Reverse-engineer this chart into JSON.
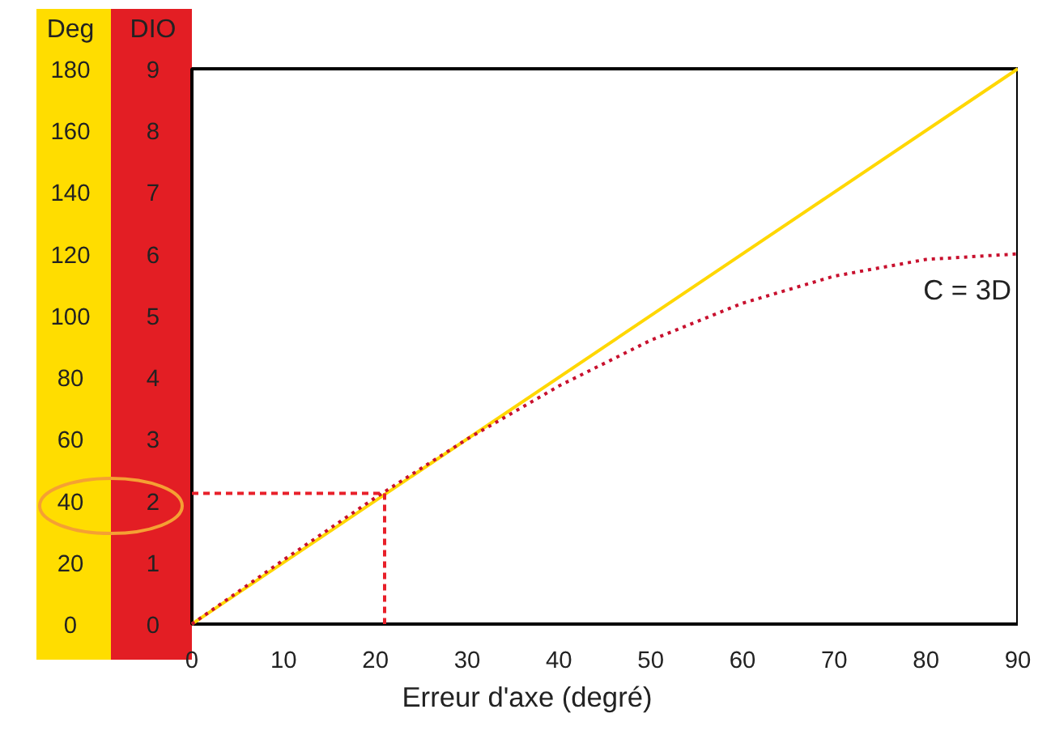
{
  "chart_data": {
    "type": "line",
    "xlabel": "Erreur d'axe (degré)",
    "ylabel": "DIO",
    "y2label": "Deg",
    "x": [
      0,
      10,
      20,
      30,
      40,
      50,
      60,
      70,
      80,
      90
    ],
    "series": [
      {
        "color": "#ffd700",
        "line_style": "solid",
        "x": [
          0,
          90
        ],
        "values": [
          0,
          9
        ]
      },
      {
        "name": "C = 3D",
        "color": "#c8102e",
        "line_style": "dotted",
        "values": [
          0,
          1.04,
          2.05,
          3.0,
          3.86,
          4.6,
          5.2,
          5.64,
          5.91,
          6.0
        ]
      },
      {
        "color": "#e8202a",
        "line_style": "dashed",
        "x": [
          0,
          21,
          21
        ],
        "values": [
          2.12,
          2.12,
          0
        ]
      }
    ],
    "xlim": [
      0,
      90
    ],
    "xticks": [
      0,
      10,
      20,
      30,
      40,
      50,
      60,
      70,
      80,
      90
    ],
    "ylim": [
      0,
      9
    ],
    "yticks": [
      0,
      1,
      2,
      3,
      4,
      5,
      6,
      7,
      8,
      9
    ],
    "y2lim": [
      0,
      180
    ],
    "y2ticks": [
      0,
      20,
      40,
      60,
      80,
      100,
      120,
      140,
      160,
      180
    ],
    "grid": false,
    "legend": false,
    "marker": "none"
  }
}
